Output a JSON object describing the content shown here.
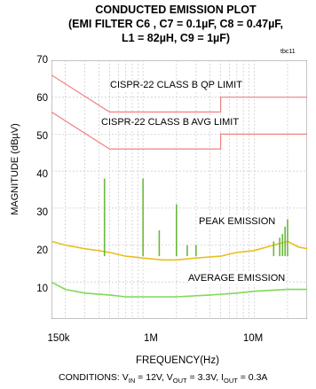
{
  "title_lines": [
    "CONDUCTED EMISSION PLOT",
    "(EMI FILTER C6 , C7 = 0.1µF, C8 = 0.47µF,",
    "L1 = 82µH, C9 = 1µF)"
  ],
  "corner_tag": "tbc11",
  "conditions": {
    "prefix": "CONDITIONS: V",
    "vin_sub": "IN",
    "vin_val": " = 12V, V",
    "vout_sub": "OUT",
    "vout_val": " = 3.3V, I",
    "iout_sub": "OUT",
    "iout_val": " = 0.3A"
  },
  "chart_data": {
    "type": "line",
    "x_scale": "log",
    "xlim_hz": [
      150000,
      30000000
    ],
    "ylim": [
      0,
      70
    ],
    "y_ticks": [
      10,
      20,
      30,
      40,
      50,
      60,
      70
    ],
    "x_ticks": [
      {
        "value": 150000,
        "label": "150k"
      },
      {
        "value": 1000000,
        "label": "1M"
      },
      {
        "value": 10000000,
        "label": "10M"
      }
    ],
    "xlabel": "FREQUENCY(Hz)",
    "ylabel": "MAGNITUDE (dBµV)",
    "grid": true,
    "annotations": {
      "qp_limit": "CISPR-22 CLASS B QP LIMIT",
      "avg_limit": "CISPR-22 CLASS B AVG LIMIT",
      "peak": "PEAK EMISSION",
      "average": "AVERAGE EMISSION"
    },
    "series": [
      {
        "name": "CISPR-22 CLASS B QP LIMIT",
        "color": "#f08080",
        "points": [
          [
            150000,
            66
          ],
          [
            500000,
            56
          ],
          [
            5000000,
            56
          ],
          [
            5000000,
            60
          ],
          [
            30000000,
            60
          ]
        ]
      },
      {
        "name": "CISPR-22 CLASS B AVG LIMIT",
        "color": "#f08080",
        "points": [
          [
            150000,
            56
          ],
          [
            500000,
            46
          ],
          [
            5000000,
            46
          ],
          [
            5000000,
            50
          ],
          [
            30000000,
            50
          ]
        ]
      },
      {
        "name": "PEAK EMISSION",
        "color": "#e8c020",
        "points": [
          [
            150000,
            21
          ],
          [
            200000,
            20
          ],
          [
            300000,
            19
          ],
          [
            400000,
            18.5
          ],
          [
            500000,
            18
          ],
          [
            700000,
            17
          ],
          [
            1000000,
            16.5
          ],
          [
            1500000,
            16
          ],
          [
            2000000,
            16
          ],
          [
            3000000,
            16.5
          ],
          [
            5000000,
            17
          ],
          [
            7000000,
            18
          ],
          [
            10000000,
            18.5
          ],
          [
            15000000,
            20
          ],
          [
            20000000,
            21
          ],
          [
            25000000,
            19.5
          ],
          [
            30000000,
            19
          ]
        ]
      },
      {
        "name": "AVERAGE EMISSION",
        "color": "#7ed957",
        "points": [
          [
            150000,
            10
          ],
          [
            200000,
            8
          ],
          [
            300000,
            7
          ],
          [
            500000,
            6.5
          ],
          [
            700000,
            6
          ],
          [
            1000000,
            6
          ],
          [
            2000000,
            6
          ],
          [
            4000000,
            6.5
          ],
          [
            7000000,
            7
          ],
          [
            10000000,
            7.5
          ],
          [
            20000000,
            8
          ],
          [
            30000000,
            8
          ]
        ]
      },
      {
        "name": "PEAK SPURS",
        "color": "#6ab83c",
        "spikes": [
          [
            450000,
            38
          ],
          [
            1000000,
            38
          ],
          [
            1400000,
            24
          ],
          [
            2000000,
            31
          ],
          [
            2500000,
            20
          ],
          [
            3000000,
            20
          ],
          [
            15000000,
            21
          ],
          [
            17000000,
            22
          ],
          [
            18000000,
            23
          ],
          [
            19000000,
            25
          ],
          [
            20000000,
            27
          ]
        ]
      }
    ]
  }
}
